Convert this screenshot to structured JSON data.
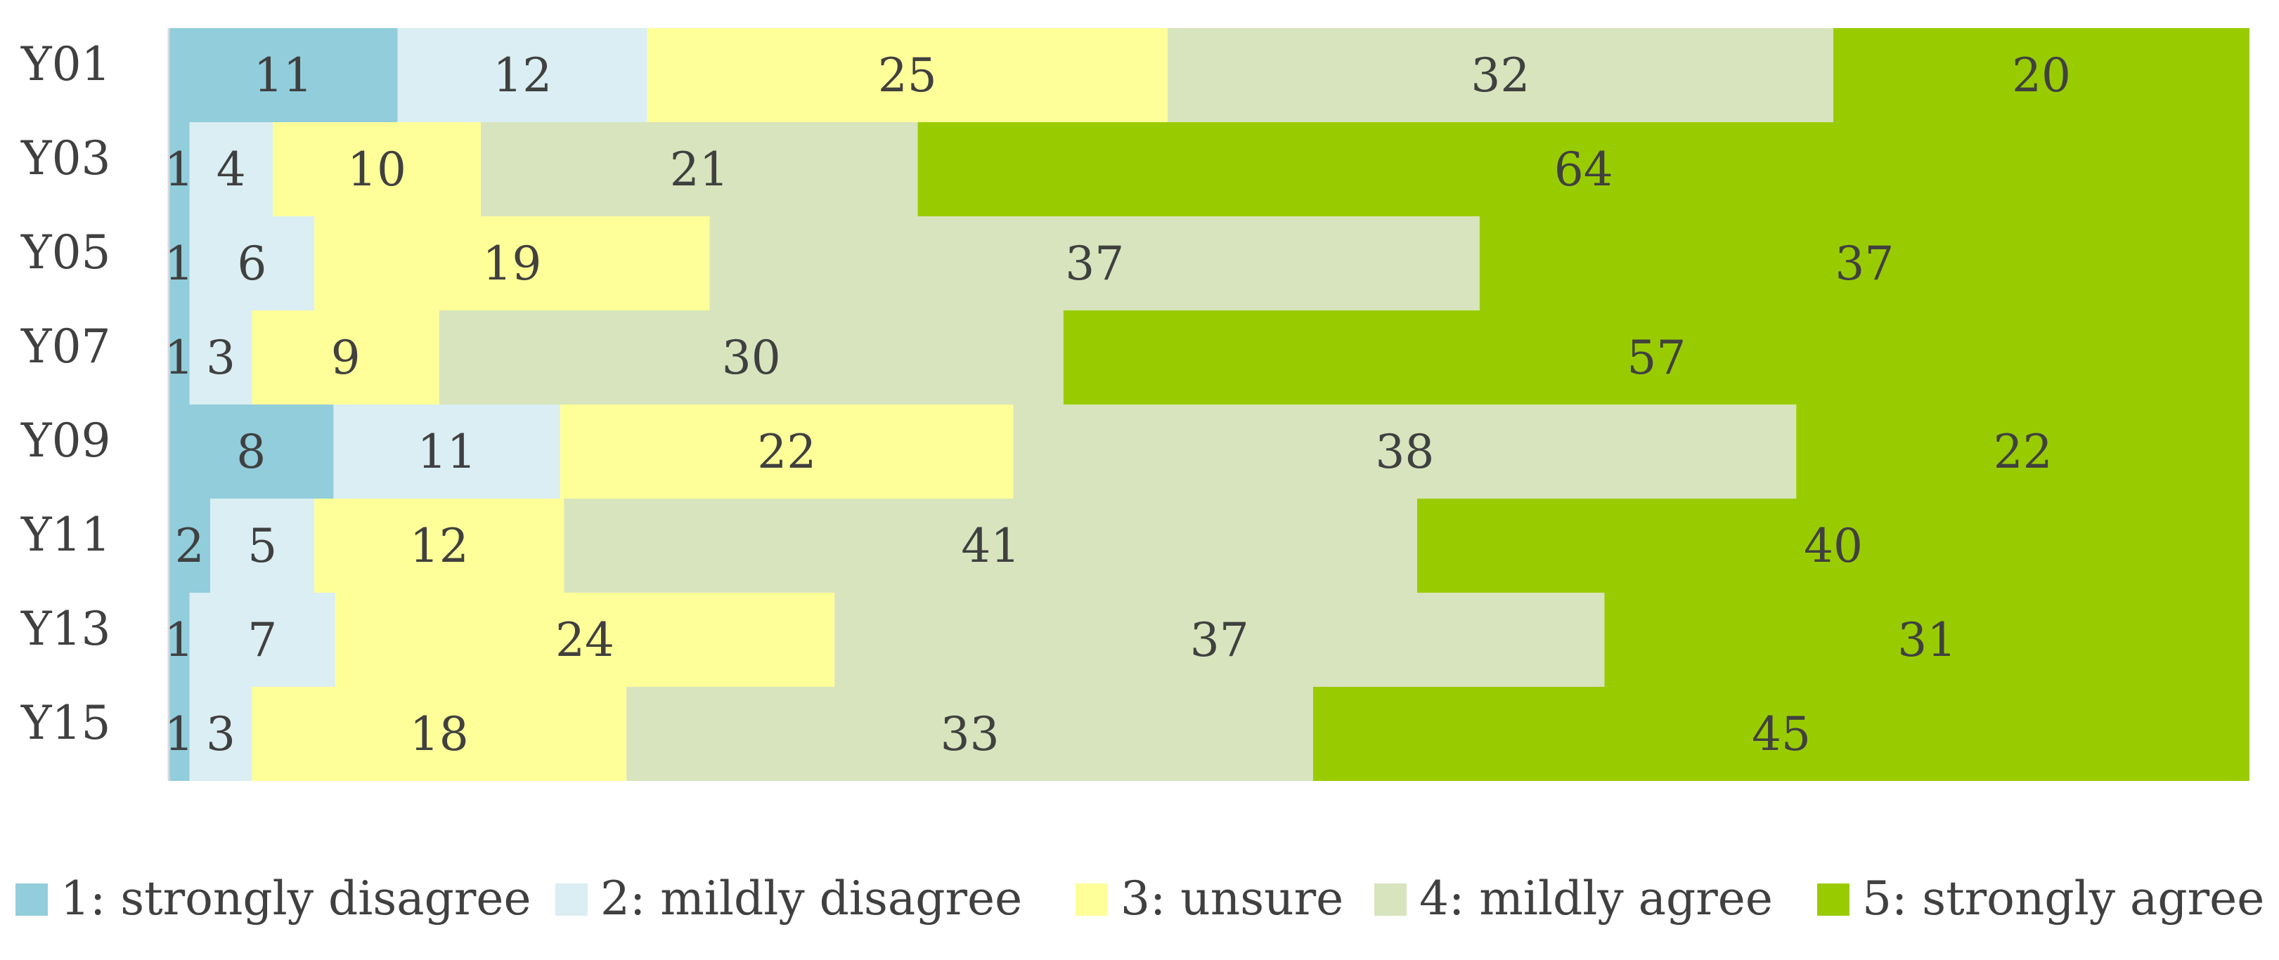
{
  "chart_data": {
    "type": "bar",
    "orientation": "horizontal",
    "stacked": true,
    "normalized": true,
    "categories": [
      "Y01",
      "Y03",
      "Y05",
      "Y07",
      "Y09",
      "Y11",
      "Y13",
      "Y15"
    ],
    "series": [
      {
        "name": "1: strongly disagree",
        "color": "#92cddc",
        "values": [
          11,
          1,
          1,
          1,
          8,
          2,
          1,
          1
        ]
      },
      {
        "name": "2: mildly disagree",
        "color": "#daeef3",
        "values": [
          12,
          4,
          6,
          3,
          11,
          5,
          7,
          3
        ]
      },
      {
        "name": "3: unsure",
        "color": "#ffff99",
        "values": [
          25,
          10,
          19,
          9,
          22,
          12,
          24,
          18
        ]
      },
      {
        "name": "4: mildly agree",
        "color": "#d7e4bd",
        "values": [
          32,
          21,
          37,
          30,
          38,
          41,
          37,
          33
        ]
      },
      {
        "name": "5: strongly agree",
        "color": "#99cc00",
        "values": [
          20,
          64,
          37,
          57,
          22,
          40,
          31,
          45
        ]
      }
    ],
    "data_labels": true,
    "title": "",
    "xlabel": "",
    "ylabel": "",
    "grid": false,
    "legend_position": "bottom"
  }
}
